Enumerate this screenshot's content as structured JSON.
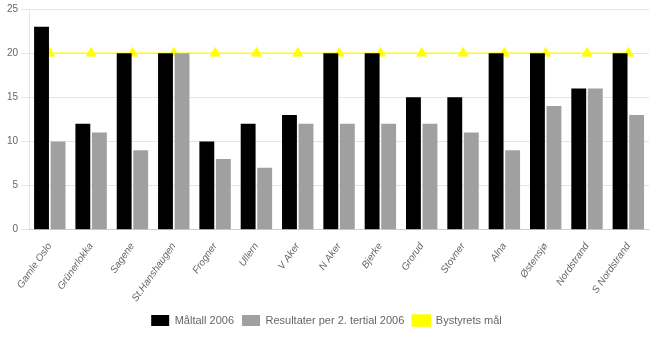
{
  "chart_data": {
    "type": "bar",
    "categories": [
      "Gamle Oslo",
      "Grünerlokka",
      "Sagene",
      "St.Hanshaugen",
      "Frogner",
      "Ullern",
      "V Aker",
      "N Aker",
      "Bjerke",
      "Grorud",
      "Stovner",
      "Alna",
      "Østensjø",
      "Nordstrand",
      "S Nordstrand"
    ],
    "series": [
      {
        "name": "Måltall 2006",
        "color": "#000000",
        "values": [
          23,
          12,
          20,
          20,
          10,
          12,
          13,
          20,
          20,
          15,
          15,
          20,
          20,
          16,
          20
        ]
      },
      {
        "name": "Resultater per 2. tertial 2006",
        "color": "#a0a0a0",
        "values": [
          10,
          11,
          9,
          20,
          8,
          7,
          12,
          12,
          12,
          12,
          11,
          9,
          14,
          16,
          13
        ]
      },
      {
        "name": "Bystyrets mål",
        "type": "line",
        "color": "#ffff00",
        "marker": "triangle",
        "values": [
          20,
          20,
          20,
          20,
          20,
          20,
          20,
          20,
          20,
          20,
          20,
          20,
          20,
          20,
          20
        ]
      }
    ],
    "ylim": [
      0,
      25
    ],
    "yticks": [
      0,
      5,
      10,
      15,
      20,
      25
    ],
    "grid": true,
    "legend": "bottom"
  }
}
